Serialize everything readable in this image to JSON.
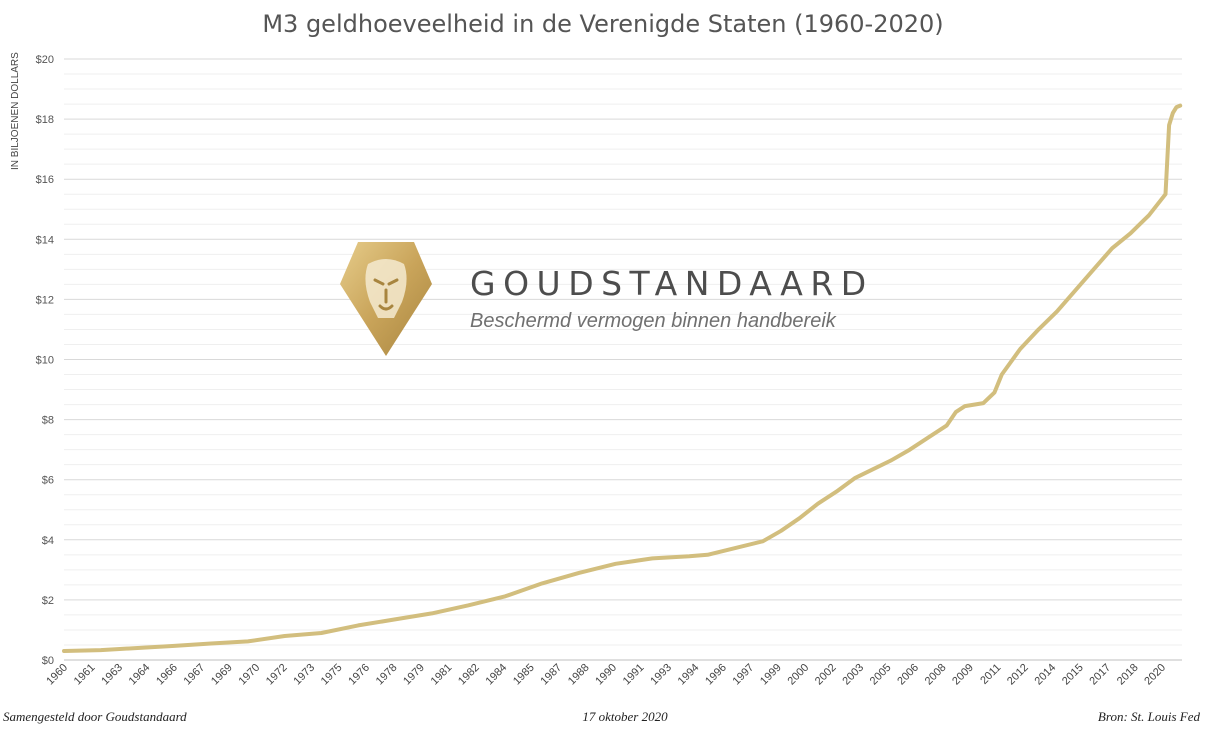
{
  "chart_data": {
    "type": "line",
    "title": "M3 geldhoeveelheid in de Verenigde Staten (1960-2020)",
    "ylabel": "IN BILJOENEN DOLLARS",
    "xlabel": "",
    "ylim": [
      0,
      20
    ],
    "xlim": [
      1960,
      2020.8
    ],
    "y_ticks": [
      "$0",
      "$2",
      "$4",
      "$6",
      "$8",
      "$10",
      "$12",
      "$14",
      "$16",
      "$18",
      "$20"
    ],
    "x_ticks": [
      "1960",
      "1961",
      "1963",
      "1964",
      "1966",
      "1967",
      "1969",
      "1970",
      "1972",
      "1973",
      "1975",
      "1976",
      "1978",
      "1979",
      "1981",
      "1982",
      "1984",
      "1985",
      "1987",
      "1988",
      "1990",
      "1991",
      "1993",
      "1994",
      "1996",
      "1997",
      "1999",
      "2000",
      "2002",
      "2003",
      "2005",
      "2006",
      "2008",
      "2009",
      "2011",
      "2012",
      "2014",
      "2015",
      "2017",
      "2018",
      "2020"
    ],
    "grid": true,
    "series": [
      {
        "color": "#d2be7e",
        "x": [
          1960,
          1962,
          1964,
          1966,
          1968,
          1970,
          1972,
          1974,
          1976,
          1978,
          1980,
          1982,
          1984,
          1986,
          1988,
          1990,
          1992,
          1994,
          1995,
          1996,
          1998,
          1999,
          2000,
          2001,
          2002,
          2003,
          2004,
          2005,
          2006,
          2007,
          2008,
          2008.5,
          2009,
          2010,
          2010.6,
          2011,
          2012,
          2013,
          2014,
          2015,
          2016,
          2017,
          2018,
          2019,
          2019.9,
          2020.1,
          2020.3,
          2020.5,
          2020.7
        ],
        "values": [
          0.3,
          0.33,
          0.4,
          0.47,
          0.55,
          0.62,
          0.8,
          0.9,
          1.15,
          1.35,
          1.55,
          1.82,
          2.12,
          2.55,
          2.9,
          3.2,
          3.38,
          3.45,
          3.5,
          3.65,
          3.95,
          4.3,
          4.72,
          5.2,
          5.6,
          6.05,
          6.35,
          6.65,
          7.0,
          7.4,
          7.8,
          8.25,
          8.45,
          8.55,
          8.9,
          9.5,
          10.35,
          11.0,
          11.6,
          12.3,
          13.0,
          13.7,
          14.2,
          14.8,
          15.5,
          17.8,
          18.2,
          18.4,
          18.45
        ]
      }
    ]
  },
  "brand": {
    "name": "GOUDSTANDAARD",
    "tagline": "Beschermd vermogen binnen handbereik",
    "logo_icon": "lion-head-shield-icon",
    "logo_color": "#c9a45a"
  },
  "footer": {
    "left": "Samengesteld door Goudstandaard",
    "center": "17 oktober 2020",
    "right": "Bron: St. Louis Fed"
  }
}
